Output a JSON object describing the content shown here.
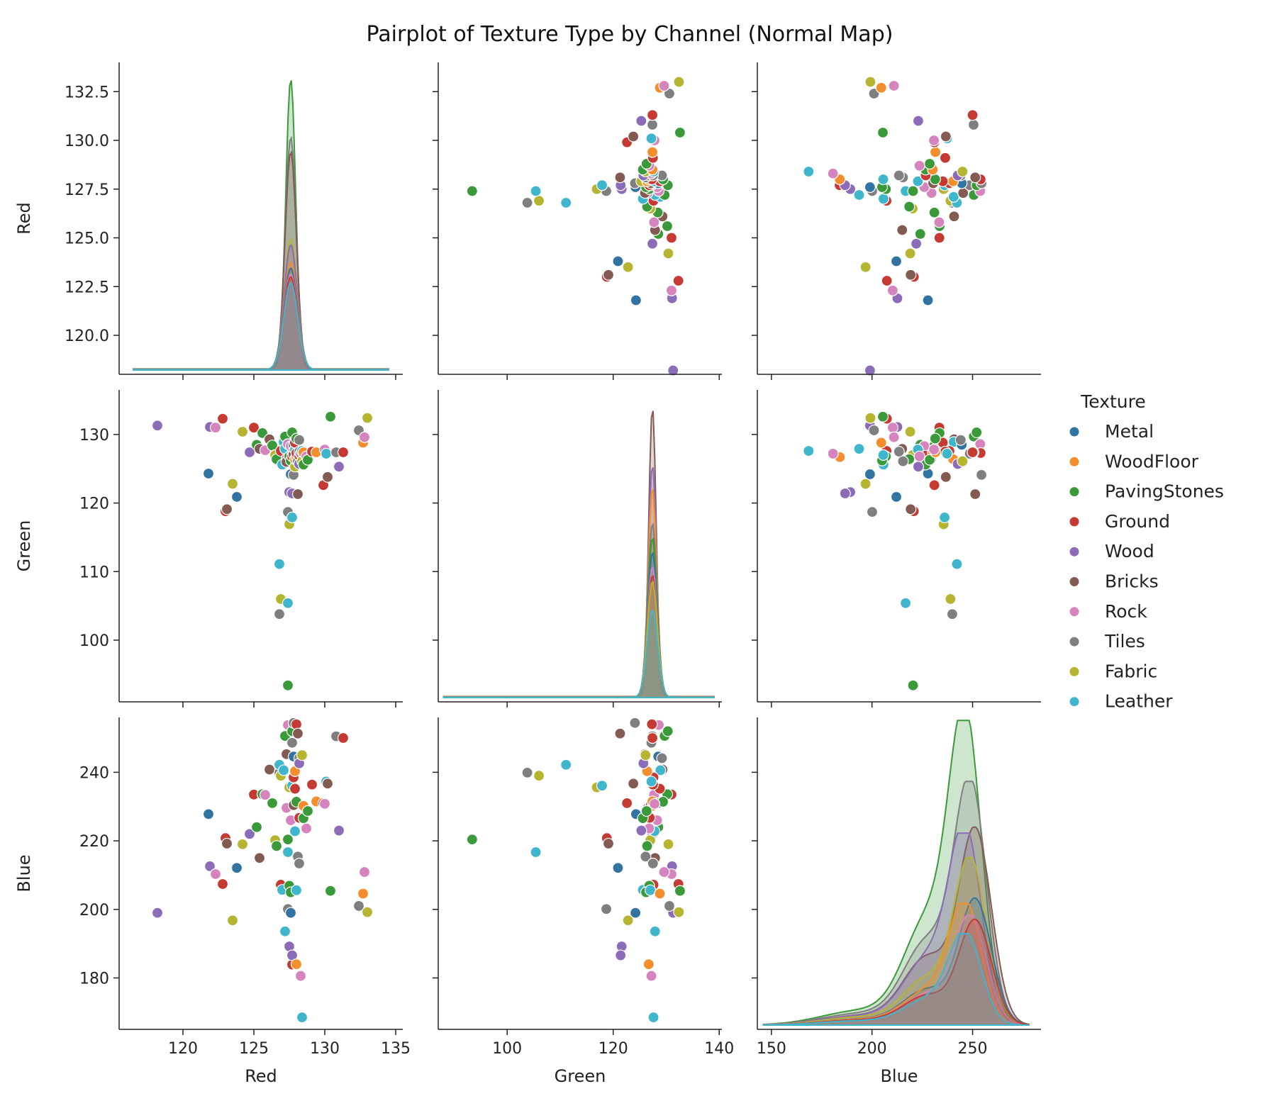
{
  "chart_data": {
    "type": "scatter",
    "title": "Pairplot of Texture Type by Channel (Normal Map)",
    "variables": [
      "Red",
      "Green",
      "Blue"
    ],
    "legend": {
      "title": "Texture",
      "placement": "right",
      "entries": [
        {
          "name": "Metal",
          "color": "#3274a1"
        },
        {
          "name": "WoodFloor",
          "color": "#f28e2b"
        },
        {
          "name": "PavingStones",
          "color": "#3a9a3a"
        },
        {
          "name": "Ground",
          "color": "#c53a32"
        },
        {
          "name": "Wood",
          "color": "#8c6bb8"
        },
        {
          "name": "Bricks",
          "color": "#845b53"
        },
        {
          "name": "Rock",
          "color": "#d684bd"
        },
        {
          "name": "Tiles",
          "color": "#7f7f7f"
        },
        {
          "name": "Fabric",
          "color": "#b5b531"
        },
        {
          "name": "Leather",
          "color": "#3fb6cc"
        }
      ]
    },
    "axes": {
      "Red": {
        "range": [
          115.5,
          135.5
        ],
        "ticks": [
          120,
          125,
          130,
          135
        ],
        "diag_ticks": [
          120.0,
          122.5,
          125.0,
          127.5,
          130.0,
          132.5
        ],
        "diag_tick_labels": [
          "120.0",
          "122.5",
          "125.0",
          "127.5",
          "130.0",
          "132.5"
        ],
        "diag_range": [
          118.0,
          134.0
        ]
      },
      "Green": {
        "range": [
          87.0,
          140.5
        ],
        "ticks": [
          100,
          120,
          140
        ],
        "row_ticks": [
          100,
          110,
          120,
          130
        ],
        "row_range": [
          91.0,
          136.5
        ]
      },
      "Blue": {
        "range": [
          143.0,
          284.0
        ],
        "ticks": [
          150,
          200,
          250
        ],
        "row_ticks": [
          180,
          200,
          220,
          240
        ],
        "row_range": [
          165.0,
          256.0
        ]
      }
    },
    "points": [
      {
        "r": 118.2,
        "g": 131.3,
        "b": 199.0,
        "t": "Wood"
      },
      {
        "r": 121.8,
        "g": 124.3,
        "b": 227.8,
        "t": "Metal"
      },
      {
        "r": 121.9,
        "g": 131.1,
        "b": 212.6,
        "t": "Wood"
      },
      {
        "r": 122.3,
        "g": 131.0,
        "b": 210.3,
        "t": "Rock"
      },
      {
        "r": 122.8,
        "g": 132.3,
        "b": 207.4,
        "t": "Ground"
      },
      {
        "r": 123.0,
        "g": 118.8,
        "b": 220.8,
        "t": "Ground"
      },
      {
        "r": 123.1,
        "g": 119.1,
        "b": 219.2,
        "t": "Bricks"
      },
      {
        "r": 123.5,
        "g": 122.8,
        "b": 196.8,
        "t": "Fabric"
      },
      {
        "r": 123.8,
        "g": 120.9,
        "b": 212.1,
        "t": "Metal"
      },
      {
        "r": 124.2,
        "g": 130.4,
        "b": 219.0,
        "t": "Fabric"
      },
      {
        "r": 124.7,
        "g": 127.4,
        "b": 222.0,
        "t": "Wood"
      },
      {
        "r": 125.0,
        "g": 131.0,
        "b": 233.5,
        "t": "Ground"
      },
      {
        "r": 125.2,
        "g": 128.5,
        "b": 224.0,
        "t": "PavingStones"
      },
      {
        "r": 125.4,
        "g": 127.9,
        "b": 215.0,
        "t": "Bricks"
      },
      {
        "r": 125.6,
        "g": 130.2,
        "b": 233.6,
        "t": "PavingStones"
      },
      {
        "r": 125.8,
        "g": 127.7,
        "b": 233.4,
        "t": "Rock"
      },
      {
        "r": 126.1,
        "g": 129.3,
        "b": 240.8,
        "t": "Bricks"
      },
      {
        "r": 126.3,
        "g": 128.4,
        "b": 231.0,
        "t": "PavingStones"
      },
      {
        "r": 126.5,
        "g": 127.0,
        "b": 220.2,
        "t": "Fabric"
      },
      {
        "r": 126.6,
        "g": 126.4,
        "b": 218.5,
        "t": "PavingStones"
      },
      {
        "r": 126.8,
        "g": 103.8,
        "b": 239.9,
        "t": "Tiles"
      },
      {
        "r": 126.9,
        "g": 106.0,
        "b": 239.0,
        "t": "Fabric"
      },
      {
        "r": 126.8,
        "g": 111.1,
        "b": 242.2,
        "t": "Leather"
      },
      {
        "r": 126.9,
        "g": 127.6,
        "b": 207.2,
        "t": "Ground"
      },
      {
        "r": 127.0,
        "g": 125.6,
        "b": 205.7,
        "t": "Leather"
      },
      {
        "r": 127.1,
        "g": 128.9,
        "b": 240.6,
        "t": "Leather"
      },
      {
        "r": 127.2,
        "g": 127.9,
        "b": 193.6,
        "t": "Leather"
      },
      {
        "r": 127.2,
        "g": 129.7,
        "b": 250.6,
        "t": "PavingStones"
      },
      {
        "r": 127.3,
        "g": 126.5,
        "b": 229.6,
        "t": "Rock"
      },
      {
        "r": 127.3,
        "g": 126.0,
        "b": 245.3,
        "t": "Bricks"
      },
      {
        "r": 127.4,
        "g": 105.4,
        "b": 216.7,
        "t": "Leather"
      },
      {
        "r": 127.4,
        "g": 93.4,
        "b": 220.4,
        "t": "PavingStones"
      },
      {
        "r": 127.4,
        "g": 128.6,
        "b": 253.8,
        "t": "Rock"
      },
      {
        "r": 127.4,
        "g": 118.7,
        "b": 200.1,
        "t": "Tiles"
      },
      {
        "r": 127.5,
        "g": 121.6,
        "b": 189.2,
        "t": "Wood"
      },
      {
        "r": 127.5,
        "g": 116.9,
        "b": 235.6,
        "t": "Fabric"
      },
      {
        "r": 127.5,
        "g": 126.8,
        "b": 206.9,
        "t": "PavingStones"
      },
      {
        "r": 127.6,
        "g": 124.2,
        "b": 199.0,
        "t": "Metal"
      },
      {
        "r": 127.6,
        "g": 126.2,
        "b": 205.0,
        "t": "PavingStones"
      },
      {
        "r": 127.6,
        "g": 128.3,
        "b": 226.0,
        "t": "Rock"
      },
      {
        "r": 127.7,
        "g": 117.9,
        "b": 236.1,
        "t": "Leather"
      },
      {
        "r": 127.7,
        "g": 127.2,
        "b": 248.6,
        "t": "Tiles"
      },
      {
        "r": 127.7,
        "g": 130.3,
        "b": 252.0,
        "t": "PavingStones"
      },
      {
        "r": 127.7,
        "g": 126.8,
        "b": 183.9,
        "t": "Ground"
      },
      {
        "r": 127.7,
        "g": 121.4,
        "b": 186.6,
        "t": "Wood"
      },
      {
        "r": 127.8,
        "g": 124.1,
        "b": 254.4,
        "t": "Tiles"
      },
      {
        "r": 127.8,
        "g": 127.6,
        "b": 238.5,
        "t": "Ground"
      },
      {
        "r": 127.8,
        "g": 128.5,
        "b": 244.6,
        "t": "Metal"
      },
      {
        "r": 127.8,
        "g": 127.1,
        "b": 230.4,
        "t": "Bricks"
      },
      {
        "r": 127.9,
        "g": 125.3,
        "b": 223.0,
        "t": "Fabric"
      },
      {
        "r": 127.9,
        "g": 127.8,
        "b": 222.8,
        "t": "Leather"
      },
      {
        "r": 127.9,
        "g": 126.4,
        "b": 240.3,
        "t": "WoodFloor"
      },
      {
        "r": 127.9,
        "g": 128.8,
        "b": 235.2,
        "t": "Ground"
      },
      {
        "r": 128.0,
        "g": 127.0,
        "b": 205.6,
        "t": "Leather"
      },
      {
        "r": 128.0,
        "g": 126.7,
        "b": 184.0,
        "t": "WoodFloor"
      },
      {
        "r": 128.0,
        "g": 129.4,
        "b": 231.4,
        "t": "PavingStones"
      },
      {
        "r": 128.0,
        "g": 127.3,
        "b": 254.0,
        "t": "Ground"
      },
      {
        "r": 128.1,
        "g": 126.1,
        "b": 215.4,
        "t": "Tiles"
      },
      {
        "r": 128.1,
        "g": 121.3,
        "b": 251.3,
        "t": "Bricks"
      },
      {
        "r": 128.2,
        "g": 129.2,
        "b": 244.1,
        "t": "Tiles"
      },
      {
        "r": 128.2,
        "g": 126.9,
        "b": 226.7,
        "t": "Ground"
      },
      {
        "r": 128.2,
        "g": 127.5,
        "b": 213.4,
        "t": "Tiles"
      },
      {
        "r": 128.2,
        "g": 125.7,
        "b": 242.6,
        "t": "Wood"
      },
      {
        "r": 128.3,
        "g": 127.2,
        "b": 180.6,
        "t": "Rock"
      },
      {
        "r": 128.4,
        "g": 126.1,
        "b": 245.0,
        "t": "Fabric"
      },
      {
        "r": 128.4,
        "g": 127.6,
        "b": 168.5,
        "t": "Leather"
      },
      {
        "r": 128.5,
        "g": 125.6,
        "b": 226.6,
        "t": "PavingStones"
      },
      {
        "r": 128.5,
        "g": 127.4,
        "b": 230.2,
        "t": "WoodFloor"
      },
      {
        "r": 128.7,
        "g": 126.8,
        "b": 223.6,
        "t": "Rock"
      },
      {
        "r": 128.8,
        "g": 126.3,
        "b": 228.7,
        "t": "PavingStones"
      },
      {
        "r": 129.1,
        "g": 127.5,
        "b": 236.4,
        "t": "Ground"
      },
      {
        "r": 129.4,
        "g": 127.4,
        "b": 231.5,
        "t": "WoodFloor"
      },
      {
        "r": 129.9,
        "g": 122.6,
        "b": 231.0,
        "t": "Ground"
      },
      {
        "r": 130.0,
        "g": 127.8,
        "b": 230.8,
        "t": "Rock"
      },
      {
        "r": 130.1,
        "g": 127.2,
        "b": 237.3,
        "t": "Leather"
      },
      {
        "r": 130.2,
        "g": 123.8,
        "b": 236.7,
        "t": "Bricks"
      },
      {
        "r": 130.4,
        "g": 132.6,
        "b": 205.4,
        "t": "PavingStones"
      },
      {
        "r": 130.8,
        "g": 127.4,
        "b": 250.5,
        "t": "Tiles"
      },
      {
        "r": 131.0,
        "g": 125.3,
        "b": 223.0,
        "t": "Wood"
      },
      {
        "r": 131.3,
        "g": 127.4,
        "b": 250.0,
        "t": "Ground"
      },
      {
        "r": 132.4,
        "g": 130.6,
        "b": 201.0,
        "t": "Tiles"
      },
      {
        "r": 132.7,
        "g": 128.8,
        "b": 204.6,
        "t": "WoodFloor"
      },
      {
        "r": 132.8,
        "g": 129.6,
        "b": 210.9,
        "t": "Rock"
      },
      {
        "r": 133.0,
        "g": 132.4,
        "b": 199.2,
        "t": "Fabric"
      }
    ],
    "diag_red_peaks": [
      {
        "t": "PavingStones",
        "peak": 1.0
      },
      {
        "t": "Tiles",
        "peak": 0.8
      },
      {
        "t": "Bricks",
        "peak": 0.75
      },
      {
        "t": "Fabric",
        "peak": 0.45
      },
      {
        "t": "Wood",
        "peak": 0.43
      },
      {
        "t": "WoodFloor",
        "peak": 0.37
      },
      {
        "t": "Metal",
        "peak": 0.35
      },
      {
        "t": "Rock",
        "peak": 0.33
      },
      {
        "t": "Ground",
        "peak": 0.32
      },
      {
        "t": "Leather",
        "peak": 0.3
      }
    ],
    "diag_green_peaks": [
      {
        "t": "Bricks",
        "peak": 1.0
      },
      {
        "t": "Wood",
        "peak": 0.8
      },
      {
        "t": "WoodFloor",
        "peak": 0.72
      },
      {
        "t": "Tiles",
        "peak": 0.6
      },
      {
        "t": "PavingStones",
        "peak": 0.55
      },
      {
        "t": "Metal",
        "peak": 0.5
      },
      {
        "t": "Rock",
        "peak": 0.45
      },
      {
        "t": "Ground",
        "peak": 0.42
      },
      {
        "t": "Fabric",
        "peak": 0.4
      },
      {
        "t": "Leather",
        "peak": 0.3
      }
    ],
    "diag_blue_peaks": [
      {
        "t": "PavingStones",
        "peak": 1.0
      },
      {
        "t": "Tiles",
        "peak": 0.8
      },
      {
        "t": "Bricks",
        "peak": 0.65
      },
      {
        "t": "Wood",
        "peak": 0.63
      },
      {
        "t": "Fabric",
        "peak": 0.55
      },
      {
        "t": "Metal",
        "peak": 0.42
      },
      {
        "t": "WoodFloor",
        "peak": 0.4
      },
      {
        "t": "Rock",
        "peak": 0.36
      },
      {
        "t": "Ground",
        "peak": 0.35
      },
      {
        "t": "Leather",
        "peak": 0.3
      }
    ]
  }
}
